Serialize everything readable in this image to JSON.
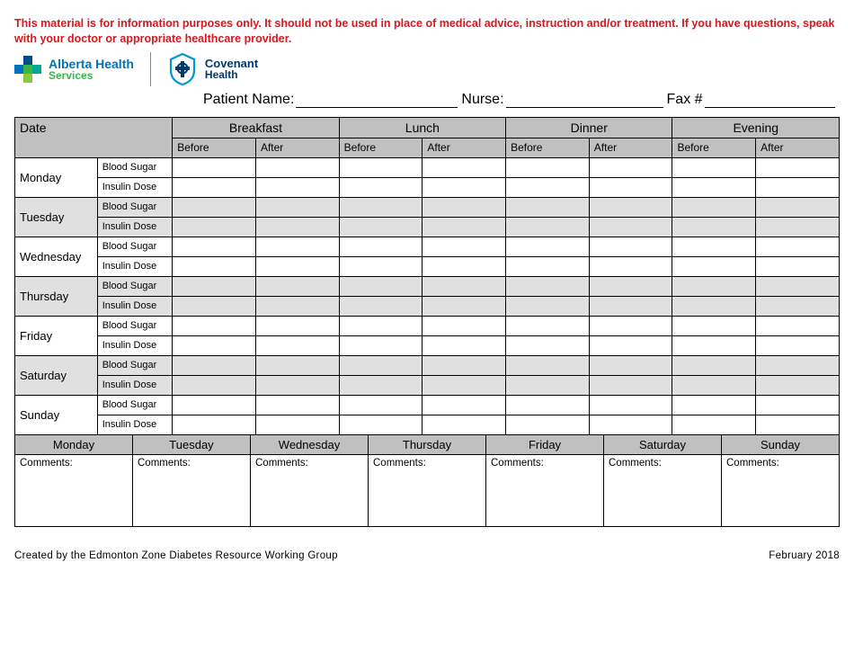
{
  "disclaimer": "This material is for information purposes only. It should not be used in place of medical advice, instruction and/or treatment. If you have questions, speak with your doctor or appropriate healthcare provider.",
  "logos": {
    "ahs": {
      "line1": "Alberta Health",
      "line2": "Services",
      "blue": "#0072bc",
      "green": "#39b54a"
    },
    "covenant": {
      "line1": "Covenant",
      "line2": "Health",
      "color": "#003a6b"
    }
  },
  "patient_line": {
    "patient_label": "Patient Name:",
    "nurse_label": "Nurse:",
    "fax_label": "Fax #",
    "patient_value": "",
    "nurse_value": "",
    "fax_value": ""
  },
  "table": {
    "date_header": "Date",
    "meals": [
      "Breakfast",
      "Lunch",
      "Dinner",
      "Evening"
    ],
    "before_label": "Before",
    "after_label": "After",
    "metrics": [
      "Blood Sugar",
      "Insulin Dose"
    ],
    "days": [
      "Monday",
      "Tuesday",
      "Wednesday",
      "Thursday",
      "Friday",
      "Saturday",
      "Sunday"
    ],
    "shaded_day_indexes": [
      1,
      3,
      5
    ],
    "values": {
      "Monday": {
        "Blood Sugar": [
          "",
          "",
          "",
          "",
          "",
          "",
          "",
          ""
        ],
        "Insulin Dose": [
          "",
          "",
          "",
          "",
          "",
          "",
          "",
          ""
        ]
      },
      "Tuesday": {
        "Blood Sugar": [
          "",
          "",
          "",
          "",
          "",
          "",
          "",
          ""
        ],
        "Insulin Dose": [
          "",
          "",
          "",
          "",
          "",
          "",
          "",
          ""
        ]
      },
      "Wednesday": {
        "Blood Sugar": [
          "",
          "",
          "",
          "",
          "",
          "",
          "",
          ""
        ],
        "Insulin Dose": [
          "",
          "",
          "",
          "",
          "",
          "",
          "",
          ""
        ]
      },
      "Thursday": {
        "Blood Sugar": [
          "",
          "",
          "",
          "",
          "",
          "",
          "",
          ""
        ],
        "Insulin Dose": [
          "",
          "",
          "",
          "",
          "",
          "",
          "",
          ""
        ]
      },
      "Friday": {
        "Blood Sugar": [
          "",
          "",
          "",
          "",
          "",
          "",
          "",
          ""
        ],
        "Insulin Dose": [
          "",
          "",
          "",
          "",
          "",
          "",
          "",
          ""
        ]
      },
      "Saturday": {
        "Blood Sugar": [
          "",
          "",
          "",
          "",
          "",
          "",
          "",
          ""
        ],
        "Insulin Dose": [
          "",
          "",
          "",
          "",
          "",
          "",
          "",
          ""
        ]
      },
      "Sunday": {
        "Blood Sugar": [
          "",
          "",
          "",
          "",
          "",
          "",
          "",
          ""
        ],
        "Insulin Dose": [
          "",
          "",
          "",
          "",
          "",
          "",
          "",
          ""
        ]
      }
    }
  },
  "comments": {
    "label": "Comments:",
    "days": [
      "Monday",
      "Tuesday",
      "Wednesday",
      "Thursday",
      "Friday",
      "Saturday",
      "Sunday"
    ],
    "values": [
      "",
      "",
      "",
      "",
      "",
      "",
      ""
    ]
  },
  "footer": {
    "left": "Created by the Edmonton Zone Diabetes Resource Working Group",
    "right": "February 2018"
  },
  "colors": {
    "header_gray": "#c0c0c0",
    "shade_gray": "#e0e0e0",
    "red": "#d8171e",
    "border": "#000000",
    "background": "#ffffff"
  }
}
